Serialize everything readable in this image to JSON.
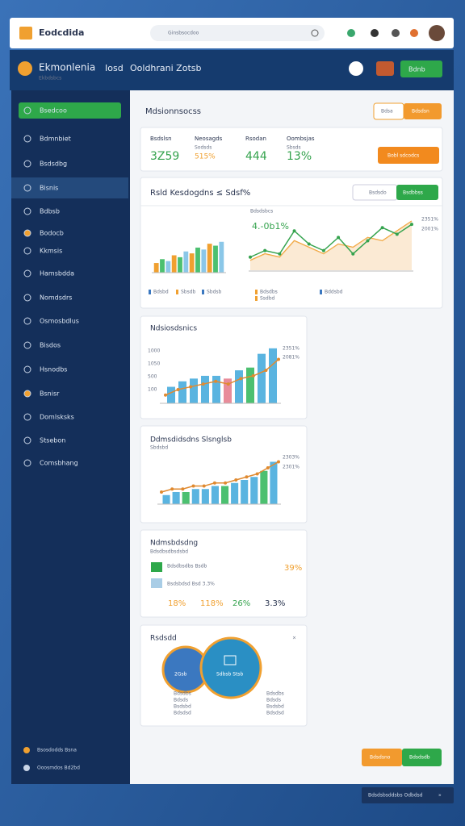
{
  "topbar": {
    "brand": "Eodcdida",
    "search": "Ginsbsocdoo"
  },
  "header": {
    "title": "Ekmonlenia",
    "subtitle": "Ekbdsbcs",
    "tab": "Iosd",
    "heading": "Ooldhrani Zotsb",
    "button": "Bdnb"
  },
  "sidebar": {
    "items": [
      "Bsedcoo",
      "Bdmnbiet",
      "Bsdsdbg",
      "Bisnis",
      "Bdbsb",
      "Bodocb",
      "Kkmsis",
      "Hamsbdda",
      "Nomdsdrs",
      "Osmosbdlus",
      "Bisdos",
      "Hsnodbs",
      "Bsnisr",
      "Domlsksks",
      "Stsebon",
      "Comsbhang"
    ],
    "footer": [
      "Bsosdodds Bsna",
      "Ooosmdos Bd2bd"
    ]
  },
  "main": {
    "title": "Mdsionnsocss",
    "buttons": [
      "Bdsa",
      "Bdsdsn"
    ],
    "stats": [
      {
        "label": "Bsdslsn",
        "value": "3Z59"
      },
      {
        "label": "Neosagds",
        "sub": "Sodsds",
        "value": "515%"
      },
      {
        "label": "Rsodan",
        "value": "444"
      },
      {
        "label": "Oombsjas",
        "sub": "Sbsds",
        "value": "13%"
      }
    ],
    "stats_button": "Bobl sdcodcs",
    "trend_card": {
      "title": "Rsld Kesdogdns ≤ Sdsf%",
      "search": "Bsdsdo",
      "button": "Bsdbbss",
      "subtitle": "Bdsdsbcs",
      "annotation": "4.-0b1%",
      "right_legend": [
        "2351%",
        "2001%"
      ],
      "bars": [
        5,
        7,
        6,
        9,
        8,
        11,
        10,
        13,
        12,
        15,
        14,
        16
      ],
      "line_a": [
        4,
        6,
        5,
        12,
        8,
        6,
        10,
        5,
        9,
        13,
        11,
        14
      ],
      "line_b": [
        3,
        5,
        4,
        9,
        7,
        5,
        8,
        7,
        10,
        9,
        12,
        15
      ],
      "legend": [
        "Bdsbd",
        "Sbsdb",
        "Sbdsb",
        "Bdsdbs",
        "Bddsbd",
        "Ssdbd"
      ]
    },
    "card2": {
      "title": "Ndsiosdsnics",
      "axis": [
        "1000",
        "1050",
        "500",
        "100"
      ],
      "labels": [
        "2351%",
        "2081%"
      ],
      "bars": [
        6,
        8,
        9,
        10,
        10,
        9,
        12,
        13,
        18,
        20
      ],
      "line": [
        3,
        5,
        6,
        7,
        8,
        7,
        9,
        10,
        12,
        16
      ]
    },
    "card3": {
      "title": "Ddmsdidsdns Slsnglsb",
      "subtitle": "Sbdsbd",
      "labels": [
        "2303%",
        "2301%"
      ],
      "bars": [
        3,
        4,
        4,
        5,
        5,
        6,
        6,
        7,
        8,
        9,
        11,
        14
      ],
      "line": [
        4,
        5,
        5,
        6,
        6,
        7,
        7,
        8,
        9,
        10,
        12,
        14
      ]
    },
    "card4": {
      "title": "Ndmsbdsdng",
      "subtitle": "Bdsdbsdbsdsbd",
      "rows": [
        "Bdsdbsdbs Bsdb",
        "Bsdsbdsd Bsd 3.3%"
      ],
      "badge": "39%",
      "values": [
        "18%",
        "118%",
        "26%",
        "3.3%"
      ]
    },
    "card5": {
      "title": "Rsdsdd",
      "left": "2Gsb",
      "right": "Sdbsb Stsb",
      "legend": [
        "Bdsdbs",
        "Bdsds",
        "Bsdsbd",
        "Bdsdsd"
      ]
    },
    "footer_buttons": [
      "Bdsdsno",
      "Bdsdsdb"
    ],
    "status": "Bdsdsbsddsbs Odbdsd"
  }
}
